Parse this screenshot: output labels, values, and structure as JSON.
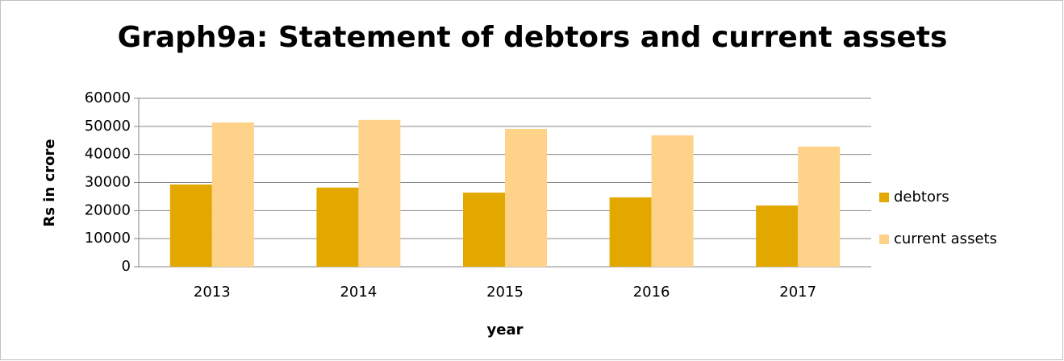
{
  "chart_data": {
    "type": "bar",
    "title": "Graph9a: Statement of debtors and current assets",
    "xlabel": "year",
    "ylabel": "Rs in crore",
    "categories": [
      "2013",
      "2014",
      "2015",
      "2016",
      "2017"
    ],
    "series": [
      {
        "name": "debtors",
        "color": "#e3a800",
        "values": [
          29300,
          28200,
          26400,
          24700,
          21800
        ]
      },
      {
        "name": "current assets",
        "color": "#ffd28a",
        "values": [
          51400,
          52300,
          49100,
          46800,
          42800
        ]
      }
    ],
    "ylim": [
      0,
      60000
    ],
    "yticks": [
      0,
      10000,
      20000,
      30000,
      40000,
      50000,
      60000
    ],
    "grid": true,
    "legend": "right"
  }
}
